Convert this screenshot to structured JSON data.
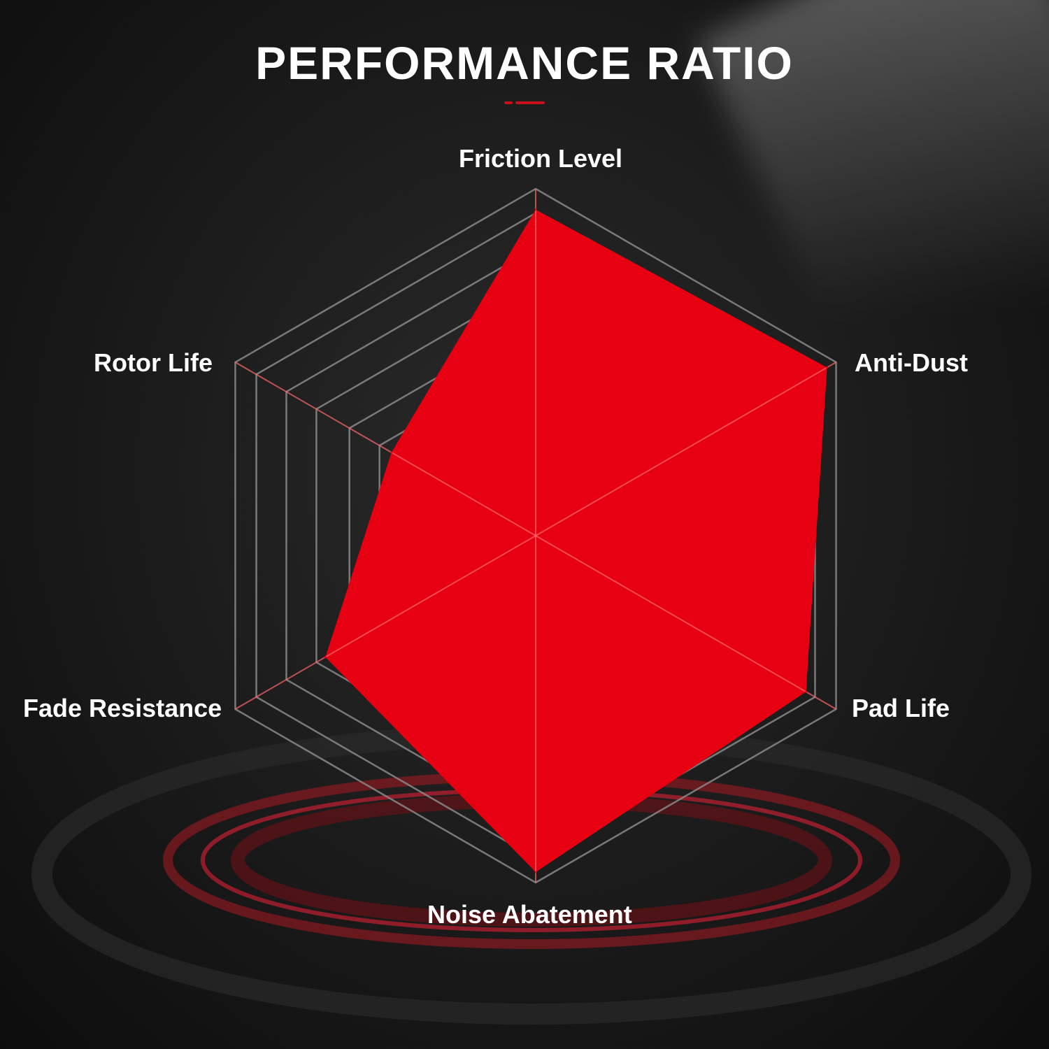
{
  "chart_data": {
    "type": "radar",
    "title": "PERFORMANCE RATIO",
    "axes": [
      "Friction Level",
      "Anti-Dust",
      "Pad Life",
      "Noise Abatement",
      "Fade Resistance",
      "Rotor Life"
    ],
    "values": [
      94,
      97,
      90,
      97,
      70,
      48
    ],
    "range": [
      0,
      100
    ],
    "grid_levels": [
      52,
      62,
      73,
      83,
      93,
      100
    ],
    "grid": true,
    "fill_color": "#e60012",
    "grid_color": "#8a8a8a",
    "background_color": "#1a1a1a"
  }
}
